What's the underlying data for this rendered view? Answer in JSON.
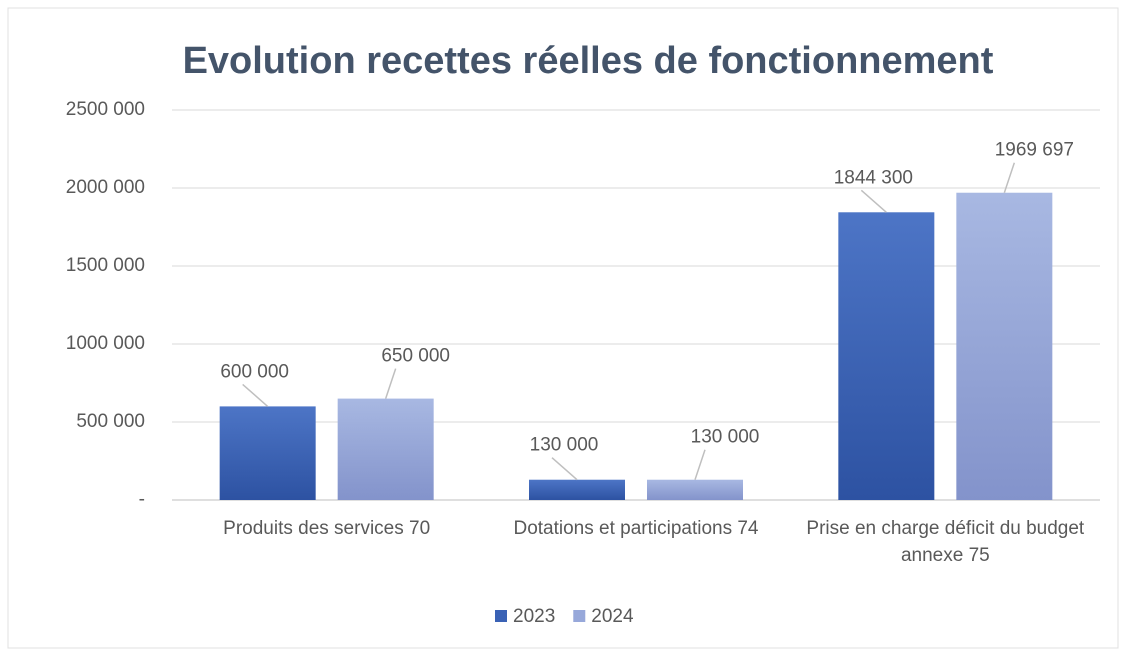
{
  "chart_data": {
    "type": "bar",
    "title": "Evolution recettes réelles de fonctionnement",
    "categories": [
      "Produits des services 70",
      "Dotations et participations 74",
      "Prise en charge déficit du budget annexe 75"
    ],
    "series": [
      {
        "name": "2023",
        "color": "#3a62b5",
        "values": [
          600000,
          130000,
          1844300
        ],
        "value_labels": [
          "600 000",
          "130 000",
          "1844 300"
        ]
      },
      {
        "name": "2024",
        "color": "#97a8da",
        "values": [
          650000,
          130000,
          1969697
        ],
        "value_labels": [
          "650 000",
          "130 000",
          "1969 697"
        ]
      }
    ],
    "ylim": [
      0,
      2500000
    ],
    "yticks": [
      {
        "value": 0,
        "label": "-"
      },
      {
        "value": 500000,
        "label": "500 000"
      },
      {
        "value": 1000000,
        "label": "1000 000"
      },
      {
        "value": 1500000,
        "label": "1500 000"
      },
      {
        "value": 2000000,
        "label": "2000 000"
      },
      {
        "value": 2500000,
        "label": "2500 000"
      }
    ],
    "grid": true,
    "legend": "bottom"
  }
}
